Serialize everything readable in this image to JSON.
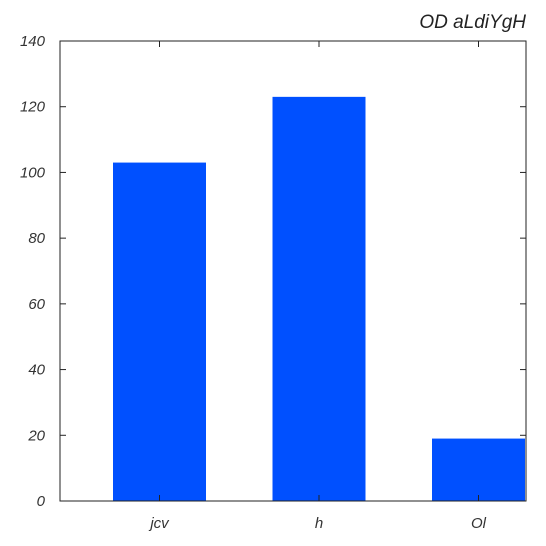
{
  "chart_data": {
    "type": "bar",
    "title": "OD aLdiYgH",
    "categories": [
      "jcv",
      "h",
      "Ol"
    ],
    "values": [
      103,
      123,
      19
    ],
    "xlabel": "",
    "ylabel": "",
    "ylim": [
      0,
      140
    ],
    "yticks": [
      0,
      20,
      40,
      60,
      80,
      100,
      120,
      140
    ],
    "grid": false,
    "bar_color": "#0050ff",
    "title_align": "right"
  }
}
